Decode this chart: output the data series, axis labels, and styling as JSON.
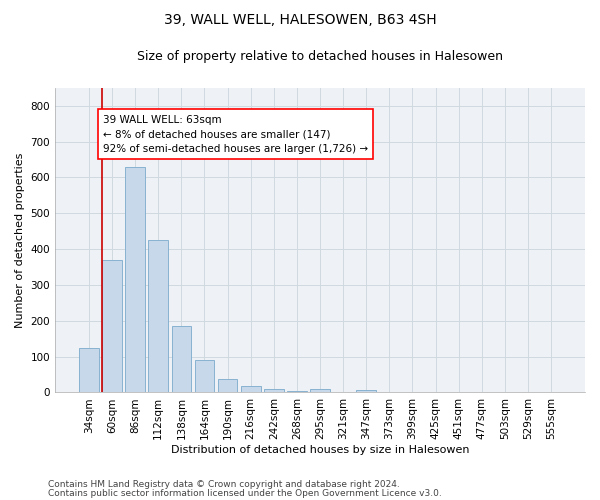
{
  "title": "39, WALL WELL, HALESOWEN, B63 4SH",
  "subtitle": "Size of property relative to detached houses in Halesowen",
  "xlabel": "Distribution of detached houses by size in Halesowen",
  "ylabel": "Number of detached properties",
  "bar_color": "#c8d8eb",
  "bar_edge_color": "#7aaaca",
  "background_color": "#eef2f7",
  "grid_color": "#d0d8e0",
  "annotation_line_color": "#cc0000",
  "categories": [
    "34sqm",
    "60sqm",
    "86sqm",
    "112sqm",
    "138sqm",
    "164sqm",
    "190sqm",
    "216sqm",
    "242sqm",
    "268sqm",
    "295sqm",
    "321sqm",
    "347sqm",
    "373sqm",
    "399sqm",
    "425sqm",
    "451sqm",
    "477sqm",
    "503sqm",
    "529sqm",
    "555sqm"
  ],
  "values": [
    125,
    370,
    630,
    425,
    185,
    90,
    38,
    18,
    10,
    5,
    10,
    0,
    8,
    0,
    0,
    0,
    0,
    0,
    0,
    0,
    0
  ],
  "ylim": [
    0,
    850
  ],
  "yticks": [
    0,
    100,
    200,
    300,
    400,
    500,
    600,
    700,
    800
  ],
  "annotation_bar_index": 1,
  "annotation_text_line1": "39 WALL WELL: 63sqm",
  "annotation_text_line2": "← 8% of detached houses are smaller (147)",
  "annotation_text_line3": "92% of semi-detached houses are larger (1,726) →",
  "footer_line1": "Contains HM Land Registry data © Crown copyright and database right 2024.",
  "footer_line2": "Contains public sector information licensed under the Open Government Licence v3.0.",
  "title_fontsize": 10,
  "subtitle_fontsize": 9,
  "annotation_fontsize": 7.5,
  "axis_label_fontsize": 8,
  "tick_fontsize": 7.5,
  "ylabel_fontsize": 8
}
